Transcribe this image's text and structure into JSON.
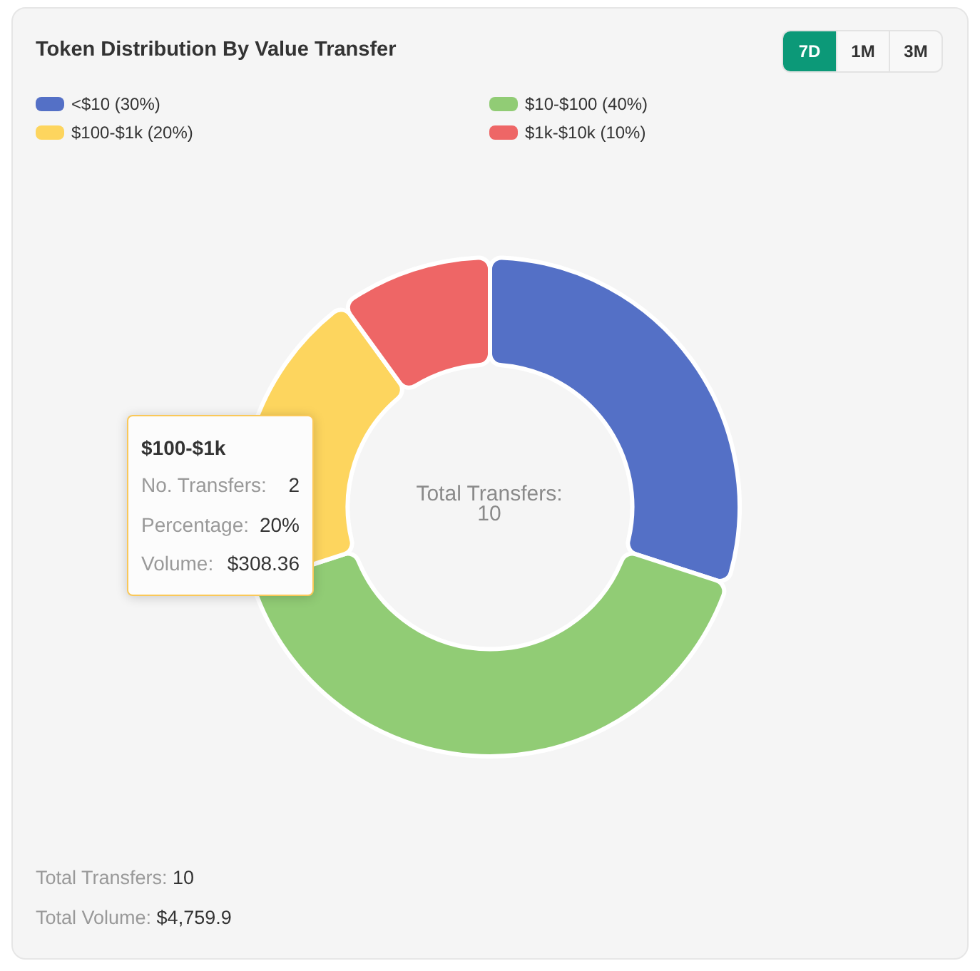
{
  "chart_data": {
    "type": "donut",
    "title": "Token Distribution By Value Transfer",
    "categories": [
      "<$10 (30%)",
      "$10-$100 (40%)",
      "$100-$1k (20%)",
      "$1k-$10k (10%)"
    ],
    "values": [
      30,
      40,
      20,
      10
    ],
    "colors": [
      "#5470c6",
      "#91cc75",
      "#fdd55e",
      "#ee6666"
    ],
    "legend": "top",
    "annotations": [
      "7D",
      "1M",
      "3M",
      "$100-$1k",
      "No. Transfers: 2",
      "Percentage: 20%",
      "Volume: $308.36",
      "Total Transfers: 10",
      "Total Transfers: 10",
      "Total Volume: $4,759.9"
    ]
  }
}
